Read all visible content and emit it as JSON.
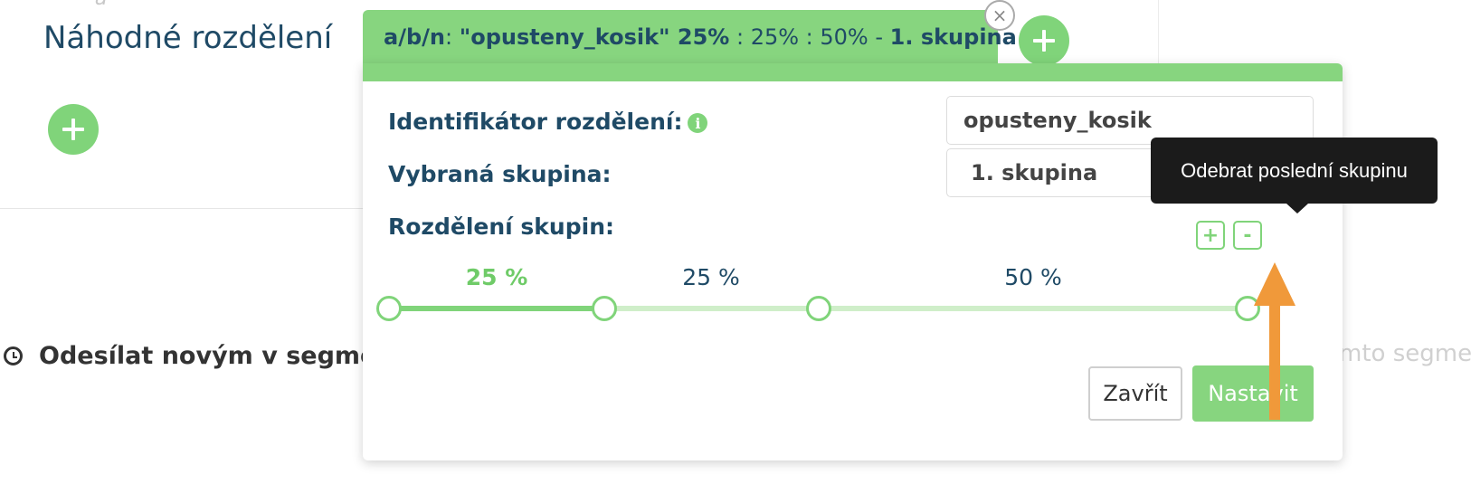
{
  "background": {
    "top_hint": "- a -",
    "section_title": "Náhodné rozdělení",
    "send_text": "Odesílat novým v segmen",
    "right_hint": "mto segme"
  },
  "tab": {
    "prefix": "a/b/n",
    "colon": ":",
    "identifier_part": "\"opusteny_kosik\" 25%",
    "rest": " : 25% : 50% - ",
    "group": "1. skupina",
    "close_glyph": "×"
  },
  "form": {
    "identifier_label": "Identifikátor rozdělení:",
    "identifier_value": "opusteny_kosik",
    "group_label": "Vybraná skupina:",
    "group_value": "1. skupina",
    "split_label": "Rozdělení skupin:",
    "add_group_glyph": "+",
    "remove_group_glyph": "-",
    "info_glyph": "i"
  },
  "slider": {
    "segments": [
      {
        "label": "25 %",
        "value": 25,
        "active": true
      },
      {
        "label": "25 %",
        "value": 25,
        "active": false
      },
      {
        "label": "50 %",
        "value": 50,
        "active": false
      }
    ]
  },
  "actions": {
    "close_label": "Zavřít",
    "set_label": "Nastavit"
  },
  "tooltip": {
    "text": "Odebrat poslední skupinu"
  },
  "colors": {
    "accent": "#80d47a",
    "title": "#1f4a66",
    "tooltip_bg": "#1b1b1b",
    "arrow": "#f0993a"
  }
}
